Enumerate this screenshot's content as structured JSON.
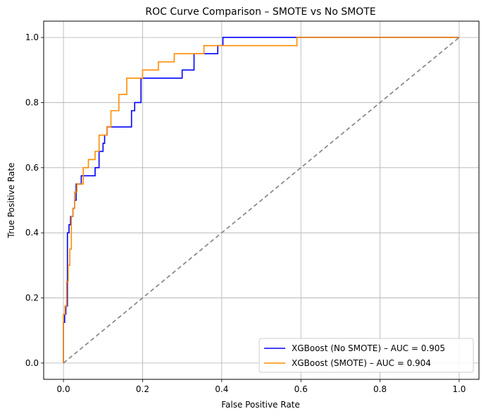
{
  "chart_data": {
    "type": "line",
    "title": "ROC Curve Comparison – SMOTE vs No SMOTE",
    "xlabel": "False Positive Rate",
    "ylabel": "True Positive Rate",
    "xlim": [
      -0.05,
      1.05
    ],
    "ylim": [
      -0.05,
      1.05
    ],
    "xticks": [
      0.0,
      0.2,
      0.4,
      0.6,
      0.8,
      1.0
    ],
    "yticks": [
      0.0,
      0.2,
      0.4,
      0.6,
      0.8,
      1.0
    ],
    "xtick_labels": [
      "0.0",
      "0.2",
      "0.4",
      "0.6",
      "0.8",
      "1.0"
    ],
    "ytick_labels": [
      "0.0",
      "0.2",
      "0.4",
      "0.6",
      "0.8",
      "1.0"
    ],
    "grid": true,
    "legend_position": "lower-right",
    "series": [
      {
        "name": "XGBoost (No SMOTE) – AUC = 0.905",
        "color": "#0000ff",
        "step": true,
        "x": [
          0.0,
          0.0,
          0.003,
          0.003,
          0.006,
          0.006,
          0.01,
          0.01,
          0.014,
          0.014,
          0.018,
          0.018,
          0.024,
          0.024,
          0.028,
          0.028,
          0.032,
          0.032,
          0.045,
          0.045,
          0.08,
          0.08,
          0.09,
          0.09,
          0.1,
          0.1,
          0.104,
          0.104,
          0.11,
          0.11,
          0.172,
          0.172,
          0.18,
          0.18,
          0.196,
          0.196,
          0.25,
          0.25,
          0.3,
          0.3,
          0.33,
          0.33,
          0.39,
          0.39,
          0.403,
          0.403,
          0.7,
          1.0
        ],
        "y": [
          0.0,
          0.125,
          0.125,
          0.15,
          0.15,
          0.175,
          0.175,
          0.4,
          0.4,
          0.425,
          0.425,
          0.45,
          0.45,
          0.475,
          0.475,
          0.5,
          0.5,
          0.55,
          0.55,
          0.575,
          0.575,
          0.6,
          0.6,
          0.65,
          0.65,
          0.675,
          0.675,
          0.7,
          0.7,
          0.725,
          0.725,
          0.775,
          0.775,
          0.8,
          0.8,
          0.875,
          0.875,
          0.875,
          0.875,
          0.9,
          0.9,
          0.95,
          0.95,
          0.975,
          0.975,
          1.0,
          1.0,
          1.0
        ]
      },
      {
        "name": "XGBoost (SMOTE) – AUC = 0.904",
        "color": "#ff8c00",
        "step": true,
        "x": [
          0.0,
          0.0,
          0.004,
          0.004,
          0.008,
          0.008,
          0.012,
          0.012,
          0.016,
          0.016,
          0.02,
          0.02,
          0.024,
          0.024,
          0.028,
          0.028,
          0.034,
          0.034,
          0.05,
          0.05,
          0.063,
          0.063,
          0.08,
          0.08,
          0.09,
          0.09,
          0.11,
          0.11,
          0.12,
          0.12,
          0.14,
          0.14,
          0.16,
          0.16,
          0.2,
          0.2,
          0.24,
          0.24,
          0.28,
          0.28,
          0.355,
          0.355,
          0.415,
          0.415,
          0.59,
          0.59,
          1.0
        ],
        "y": [
          0.0,
          0.15,
          0.15,
          0.175,
          0.175,
          0.25,
          0.25,
          0.3,
          0.3,
          0.35,
          0.35,
          0.45,
          0.45,
          0.475,
          0.475,
          0.525,
          0.525,
          0.55,
          0.55,
          0.6,
          0.6,
          0.625,
          0.625,
          0.65,
          0.65,
          0.7,
          0.7,
          0.725,
          0.725,
          0.775,
          0.775,
          0.825,
          0.825,
          0.875,
          0.875,
          0.9,
          0.9,
          0.925,
          0.925,
          0.95,
          0.95,
          0.975,
          0.975,
          0.975,
          0.975,
          1.0,
          1.0
        ]
      }
    ],
    "reference_line": {
      "x": [
        0.0,
        1.0
      ],
      "y": [
        0.0,
        1.0
      ],
      "color": "#808080",
      "style": "dashed"
    }
  }
}
